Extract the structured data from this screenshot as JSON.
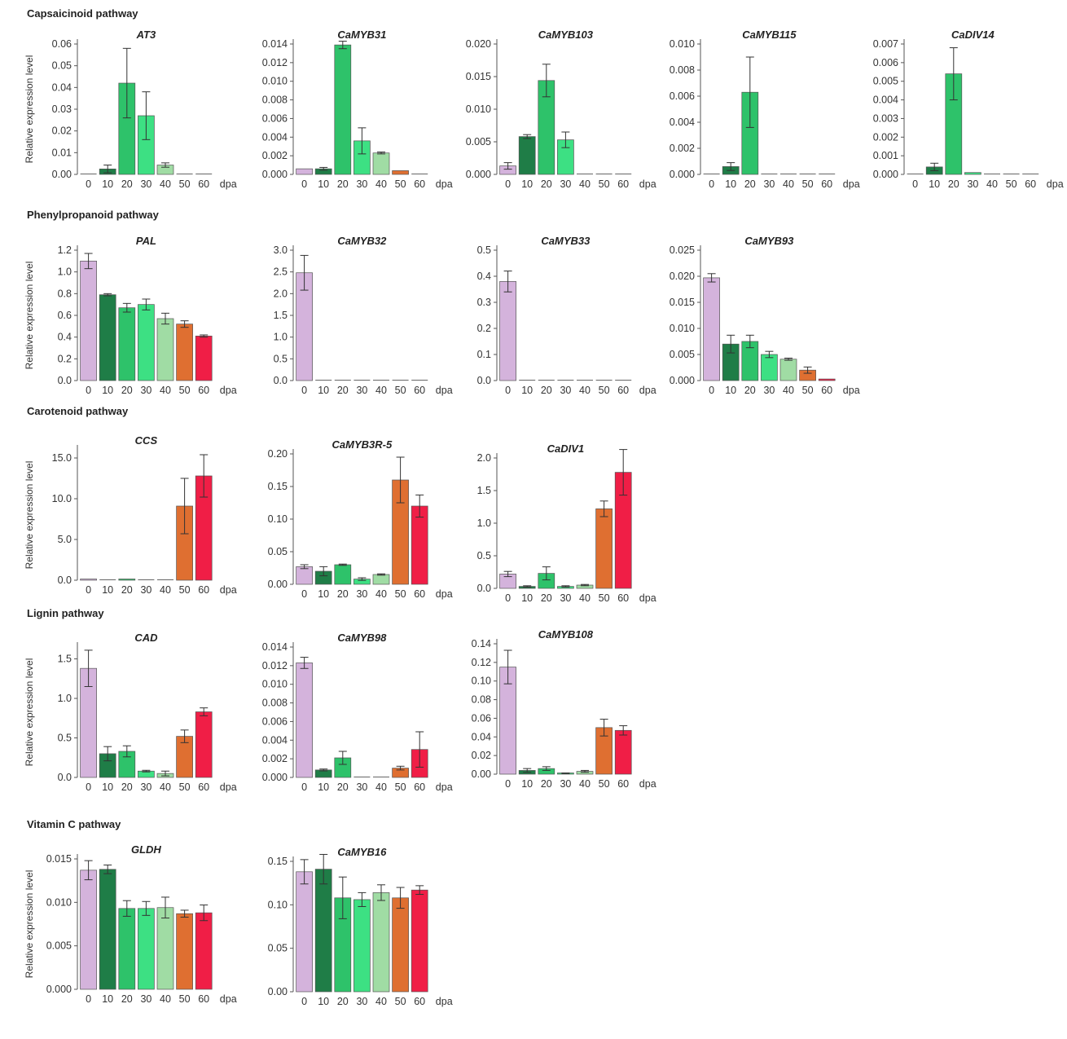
{
  "colors": {
    "0": "#d4b3dc",
    "10": "#1f7d47",
    "20": "#2ec26a",
    "30": "#3de083",
    "40": "#a0dca4",
    "50": "#df6f31",
    "60": "#f01e46"
  },
  "x_unit_label": "dpa",
  "y_axis_label": "Relative expression level",
  "categories": [
    "0",
    "10",
    "20",
    "30",
    "40",
    "50",
    "60"
  ],
  "pathways": [
    {
      "title": "Capsaicinoid pathway"
    },
    {
      "title": "Phenylpropanoid pathway"
    },
    {
      "title": "Carotenoid pathway"
    },
    {
      "title": "Lignin pathway"
    },
    {
      "title": "Vitamin C pathway"
    }
  ],
  "chart_data": [
    {
      "type": "bar",
      "pathway": "Capsaicinoid pathway",
      "title": "AT3",
      "xlabel": "dpa",
      "ylabel": "Relative expression level",
      "categories": [
        "0",
        "10",
        "20",
        "30",
        "40",
        "50",
        "60"
      ],
      "values": [
        0,
        0.0025,
        0.042,
        0.027,
        0.0043,
        0,
        0
      ],
      "errors": [
        0,
        0.0018,
        0.016,
        0.011,
        0.001,
        0,
        0
      ],
      "ylim": [
        0,
        0.06
      ],
      "yticks": [
        "0.00",
        "0.01",
        "0.02",
        "0.03",
        "0.04",
        "0.05",
        "0.06"
      ]
    },
    {
      "type": "bar",
      "pathway": "Capsaicinoid pathway",
      "title": "CaMYB31",
      "xlabel": "dpa",
      "ylabel": "",
      "categories": [
        "0",
        "10",
        "20",
        "30",
        "40",
        "50",
        "60"
      ],
      "values": [
        0.0006,
        0.0006,
        0.0139,
        0.0036,
        0.0023,
        0.0004,
        0
      ],
      "errors": [
        0,
        0.00015,
        0.0004,
        0.0014,
        0.0001,
        0,
        0
      ],
      "ylim": [
        0,
        0.014
      ],
      "yticks": [
        "0.000",
        "0.002",
        "0.004",
        "0.006",
        "0.008",
        "0.010",
        "0.012",
        "0.014"
      ]
    },
    {
      "type": "bar",
      "pathway": "Capsaicinoid pathway",
      "title": "CaMYB103",
      "xlabel": "dpa",
      "ylabel": "",
      "categories": [
        "0",
        "10",
        "20",
        "30",
        "40",
        "50",
        "60"
      ],
      "values": [
        0.0013,
        0.0058,
        0.0144,
        0.0053,
        0,
        0,
        0
      ],
      "errors": [
        0.0005,
        0.0003,
        0.0025,
        0.0012,
        0,
        0,
        0
      ],
      "ylim": [
        0,
        0.02
      ],
      "yticks": [
        "0.000",
        "0.005",
        "0.010",
        "0.015",
        "0.020"
      ]
    },
    {
      "type": "bar",
      "pathway": "Capsaicinoid pathway",
      "title": "CaMYB115",
      "xlabel": "dpa",
      "ylabel": "",
      "categories": [
        "0",
        "10",
        "20",
        "30",
        "40",
        "50",
        "60"
      ],
      "values": [
        0,
        0.0006,
        0.0063,
        0,
        0,
        0,
        0
      ],
      "errors": [
        0,
        0.0003,
        0.0027,
        0,
        0,
        0,
        0
      ],
      "ylim": [
        0,
        0.01
      ],
      "yticks": [
        "0.000",
        "0.002",
        "0.004",
        "0.006",
        "0.008",
        "0.010"
      ]
    },
    {
      "type": "bar",
      "pathway": "Capsaicinoid pathway",
      "title": "CaDIV14",
      "xlabel": "dpa",
      "ylabel": "",
      "categories": [
        "0",
        "10",
        "20",
        "30",
        "40",
        "50",
        "60"
      ],
      "values": [
        0,
        0.0004,
        0.0054,
        0.0001,
        0,
        0,
        0
      ],
      "errors": [
        0,
        0.0002,
        0.0014,
        0,
        0,
        0,
        0
      ],
      "ylim": [
        0,
        0.007
      ],
      "yticks": [
        "0.000",
        "0.001",
        "0.002",
        "0.003",
        "0.004",
        "0.005",
        "0.006",
        "0.007"
      ]
    },
    {
      "type": "bar",
      "pathway": "Phenylpropanoid pathway",
      "title": "PAL",
      "xlabel": "dpa",
      "ylabel": "Relative expression level",
      "categories": [
        "0",
        "10",
        "20",
        "30",
        "40",
        "50",
        "60"
      ],
      "values": [
        1.1,
        0.79,
        0.67,
        0.7,
        0.57,
        0.52,
        0.41
      ],
      "errors": [
        0.07,
        0.01,
        0.04,
        0.05,
        0.05,
        0.03,
        0.01
      ],
      "ylim": [
        0,
        1.2
      ],
      "yticks": [
        "0.0",
        "0.2",
        "0.4",
        "0.6",
        "0.8",
        "1.0",
        "1.2"
      ]
    },
    {
      "type": "bar",
      "pathway": "Phenylpropanoid pathway",
      "title": "CaMYB32",
      "xlabel": "dpa",
      "ylabel": "",
      "categories": [
        "0",
        "10",
        "20",
        "30",
        "40",
        "50",
        "60"
      ],
      "values": [
        2.48,
        0,
        0,
        0,
        0,
        0,
        0
      ],
      "errors": [
        0.4,
        0,
        0,
        0,
        0,
        0,
        0
      ],
      "ylim": [
        0,
        3.0
      ],
      "yticks": [
        "0.0",
        "0.5",
        "1.0",
        "1.5",
        "2.0",
        "2.5",
        "3.0"
      ]
    },
    {
      "type": "bar",
      "pathway": "Phenylpropanoid pathway",
      "title": "CaMYB33",
      "xlabel": "dpa",
      "ylabel": "",
      "categories": [
        "0",
        "10",
        "20",
        "30",
        "40",
        "50",
        "60"
      ],
      "values": [
        0.38,
        0,
        0,
        0,
        0,
        0,
        0
      ],
      "errors": [
        0.04,
        0,
        0,
        0,
        0,
        0,
        0
      ],
      "ylim": [
        0,
        0.5
      ],
      "yticks": [
        "0.0",
        "0.1",
        "0.2",
        "0.3",
        "0.4",
        "0.5"
      ]
    },
    {
      "type": "bar",
      "pathway": "Phenylpropanoid pathway",
      "title": "CaMYB93",
      "xlabel": "dpa",
      "ylabel": "",
      "categories": [
        "0",
        "10",
        "20",
        "30",
        "40",
        "50",
        "60"
      ],
      "values": [
        0.0197,
        0.007,
        0.0075,
        0.005,
        0.0041,
        0.002,
        0.0003
      ],
      "errors": [
        0.0008,
        0.0017,
        0.0012,
        0.0006,
        0.0002,
        0.0006,
        0
      ],
      "ylim": [
        0,
        0.025
      ],
      "yticks": [
        "0.000",
        "0.005",
        "0.010",
        "0.015",
        "0.020",
        "0.025"
      ]
    },
    {
      "type": "bar",
      "pathway": "Carotenoid pathway",
      "title": "CCS",
      "xlabel": "dpa",
      "ylabel": "Relative expression level",
      "categories": [
        "0",
        "10",
        "20",
        "30",
        "40",
        "50",
        "60"
      ],
      "values": [
        0.05,
        0,
        0.03,
        0,
        0,
        9.1,
        12.8
      ],
      "errors": [
        0,
        0,
        0,
        0,
        0,
        3.4,
        2.6
      ],
      "ylim": [
        0,
        16.0
      ],
      "yticks": [
        "0.0",
        "5.0",
        "10.0",
        "15.0"
      ]
    },
    {
      "type": "bar",
      "pathway": "Carotenoid pathway",
      "title": "CaMYB3R-5",
      "xlabel": "dpa",
      "ylabel": "",
      "categories": [
        "0",
        "10",
        "20",
        "30",
        "40",
        "50",
        "60"
      ],
      "values": [
        0.027,
        0.02,
        0.03,
        0.008,
        0.015,
        0.16,
        0.12
      ],
      "errors": [
        0.003,
        0.007,
        0.001,
        0.002,
        0.001,
        0.035,
        0.017
      ],
      "ylim": [
        0,
        0.2
      ],
      "yticks": [
        "0.00",
        "0.05",
        "0.10",
        "0.15",
        "0.20"
      ]
    },
    {
      "type": "bar",
      "pathway": "Carotenoid pathway",
      "title": "CaDIV1",
      "xlabel": "dpa",
      "ylabel": "",
      "categories": [
        "0",
        "10",
        "20",
        "30",
        "40",
        "50",
        "60"
      ],
      "values": [
        0.22,
        0.03,
        0.23,
        0.03,
        0.05,
        1.22,
        1.78
      ],
      "errors": [
        0.04,
        0.01,
        0.1,
        0.01,
        0.01,
        0.12,
        0.35
      ],
      "ylim": [
        0,
        2.0
      ],
      "yticks": [
        "0.0",
        "0.5",
        "1.0",
        "1.5",
        "2.0"
      ]
    },
    {
      "type": "bar",
      "pathway": "Lignin pathway",
      "title": "CAD",
      "xlabel": "dpa",
      "ylabel": "Relative expression level",
      "categories": [
        "0",
        "10",
        "20",
        "30",
        "40",
        "50",
        "60"
      ],
      "values": [
        1.38,
        0.3,
        0.33,
        0.08,
        0.05,
        0.52,
        0.83
      ],
      "errors": [
        0.23,
        0.09,
        0.07,
        0.01,
        0.03,
        0.08,
        0.05
      ],
      "ylim": [
        0,
        1.65
      ],
      "yticks": [
        "0.0",
        "0.5",
        "1.0",
        "1.5"
      ]
    },
    {
      "type": "bar",
      "pathway": "Lignin pathway",
      "title": "CaMYB98",
      "xlabel": "dpa",
      "ylabel": "",
      "categories": [
        "0",
        "10",
        "20",
        "30",
        "40",
        "50",
        "60"
      ],
      "values": [
        0.0123,
        0.0008,
        0.0021,
        0,
        0,
        0.001,
        0.003
      ],
      "errors": [
        0.0006,
        0.0001,
        0.0007,
        0,
        0,
        0.0002,
        0.0019
      ],
      "ylim": [
        0,
        0.014
      ],
      "yticks": [
        "0.000",
        "0.002",
        "0.004",
        "0.006",
        "0.008",
        "0.010",
        "0.012",
        "0.014"
      ]
    },
    {
      "type": "bar",
      "pathway": "Lignin pathway",
      "title": "CaMYB108",
      "xlabel": "dpa",
      "ylabel": "",
      "categories": [
        "0",
        "10",
        "20",
        "30",
        "40",
        "50",
        "60"
      ],
      "values": [
        0.115,
        0.004,
        0.006,
        0.001,
        0.003,
        0.05,
        0.047
      ],
      "errors": [
        0.018,
        0.002,
        0.002,
        0.0003,
        0.001,
        0.009,
        0.005
      ],
      "ylim": [
        0,
        0.14
      ],
      "yticks": [
        "0.00",
        "0.02",
        "0.04",
        "0.06",
        "0.08",
        "0.10",
        "0.12",
        "0.14"
      ]
    },
    {
      "type": "bar",
      "pathway": "Vitamin C pathway",
      "title": "GLDH",
      "xlabel": "dpa",
      "ylabel": "Relative expression level",
      "categories": [
        "0",
        "10",
        "20",
        "30",
        "40",
        "50",
        "60"
      ],
      "values": [
        0.0137,
        0.0138,
        0.0093,
        0.0093,
        0.0094,
        0.0087,
        0.0088
      ],
      "errors": [
        0.0011,
        0.0005,
        0.0009,
        0.0008,
        0.0012,
        0.0004,
        0.0009
      ],
      "ylim": [
        0,
        0.015
      ],
      "yticks": [
        "0.000",
        "0.005",
        "0.010",
        "0.015"
      ]
    },
    {
      "type": "bar",
      "pathway": "Vitamin C pathway",
      "title": "CaMYB16",
      "xlabel": "dpa",
      "ylabel": "",
      "categories": [
        "0",
        "10",
        "20",
        "30",
        "40",
        "50",
        "60"
      ],
      "values": [
        0.138,
        0.141,
        0.108,
        0.106,
        0.114,
        0.108,
        0.117
      ],
      "errors": [
        0.014,
        0.017,
        0.024,
        0.008,
        0.009,
        0.012,
        0.005
      ],
      "ylim": [
        0,
        0.15
      ],
      "yticks": [
        "0.00",
        "0.05",
        "0.10",
        "0.15"
      ]
    }
  ]
}
